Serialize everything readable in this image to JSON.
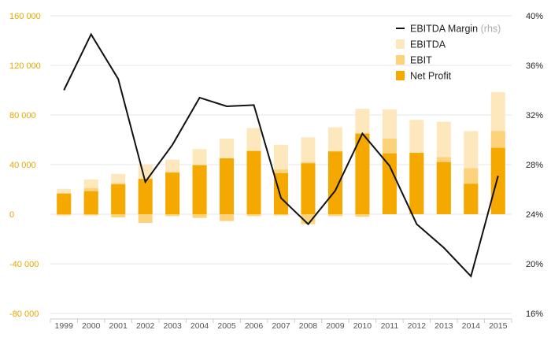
{
  "chart_data": {
    "type": "bar",
    "categories": [
      "1999",
      "2000",
      "2001",
      "2002",
      "2003",
      "2004",
      "2005",
      "2006",
      "2007",
      "2008",
      "2009",
      "2010",
      "2011",
      "2012",
      "2013",
      "2014",
      "2015"
    ],
    "series": [
      {
        "name": "EBITDA",
        "type": "bar",
        "axis": "left",
        "color": "#fde7bd",
        "values": [
          20500,
          28000,
          32500,
          40000,
          44000,
          52500,
          61000,
          69500,
          56000,
          62000,
          70000,
          85000,
          84500,
          76000,
          74500,
          67000,
          98500
        ]
      },
      {
        "name": "EBIT",
        "type": "bar",
        "axis": "left",
        "color": "#fcd27a",
        "values": [
          17000,
          21000,
          25000,
          27000,
          34000,
          39500,
          45000,
          51000,
          36000,
          42000,
          51000,
          64000,
          61000,
          49000,
          46000,
          37000,
          67000
        ]
      },
      {
        "name": "Net Profit",
        "type": "bar",
        "axis": "left",
        "color": "#f5a800",
        "values": [
          16500,
          18500,
          24000,
          28500,
          33500,
          39500,
          45000,
          51000,
          33000,
          41000,
          50500,
          65000,
          49000,
          49500,
          42000,
          24500,
          53500
        ]
      },
      {
        "name": "Net Profit (negative)",
        "type": "bar",
        "axis": "left",
        "color": "#fcd27a",
        "values": [
          -1000,
          -1000,
          -2500,
          -7000,
          -1500,
          -3000,
          -5500,
          -1500,
          -1000,
          -8000,
          -1500,
          -2000,
          0,
          0,
          0,
          0,
          0
        ]
      },
      {
        "name": "EBITDA Margin",
        "type": "line",
        "axis": "right",
        "color": "#111111",
        "values": [
          34.0,
          38.5,
          34.9,
          26.6,
          29.6,
          33.4,
          32.7,
          32.8,
          25.3,
          23.2,
          25.9,
          30.5,
          27.9,
          23.2,
          21.3,
          19.0,
          27.1
        ]
      }
    ],
    "legend": {
      "position": "top-right",
      "entries": [
        {
          "label": "EBITDA Margin",
          "suffix": "(rhs)",
          "kind": "line",
          "color": "#111111"
        },
        {
          "label": "EBITDA",
          "suffix": "",
          "kind": "box",
          "color": "#fde7bd"
        },
        {
          "label": "EBIT",
          "suffix": "",
          "kind": "box",
          "color": "#fcd27a"
        },
        {
          "label": "Net Profit",
          "suffix": "",
          "kind": "box",
          "color": "#f5a800"
        }
      ]
    },
    "y_left": {
      "range": [
        -80000,
        160000
      ],
      "ticks": [
        "160 000",
        "120 000",
        "80 000",
        "40 000",
        "0",
        "-40 000",
        "-80 000"
      ],
      "tick_values": [
        160000,
        120000,
        80000,
        40000,
        0,
        -40000,
        -80000
      ],
      "color": "#e5a800"
    },
    "y_right": {
      "range": [
        16,
        40
      ],
      "unit": "%",
      "ticks": [
        "40%",
        "36%",
        "32%",
        "28%",
        "24%",
        "20%",
        "16%"
      ],
      "tick_values": [
        40,
        36,
        32,
        28,
        24,
        20,
        16
      ]
    },
    "grid": true,
    "title": "",
    "xlabel": "",
    "ylabel": ""
  }
}
